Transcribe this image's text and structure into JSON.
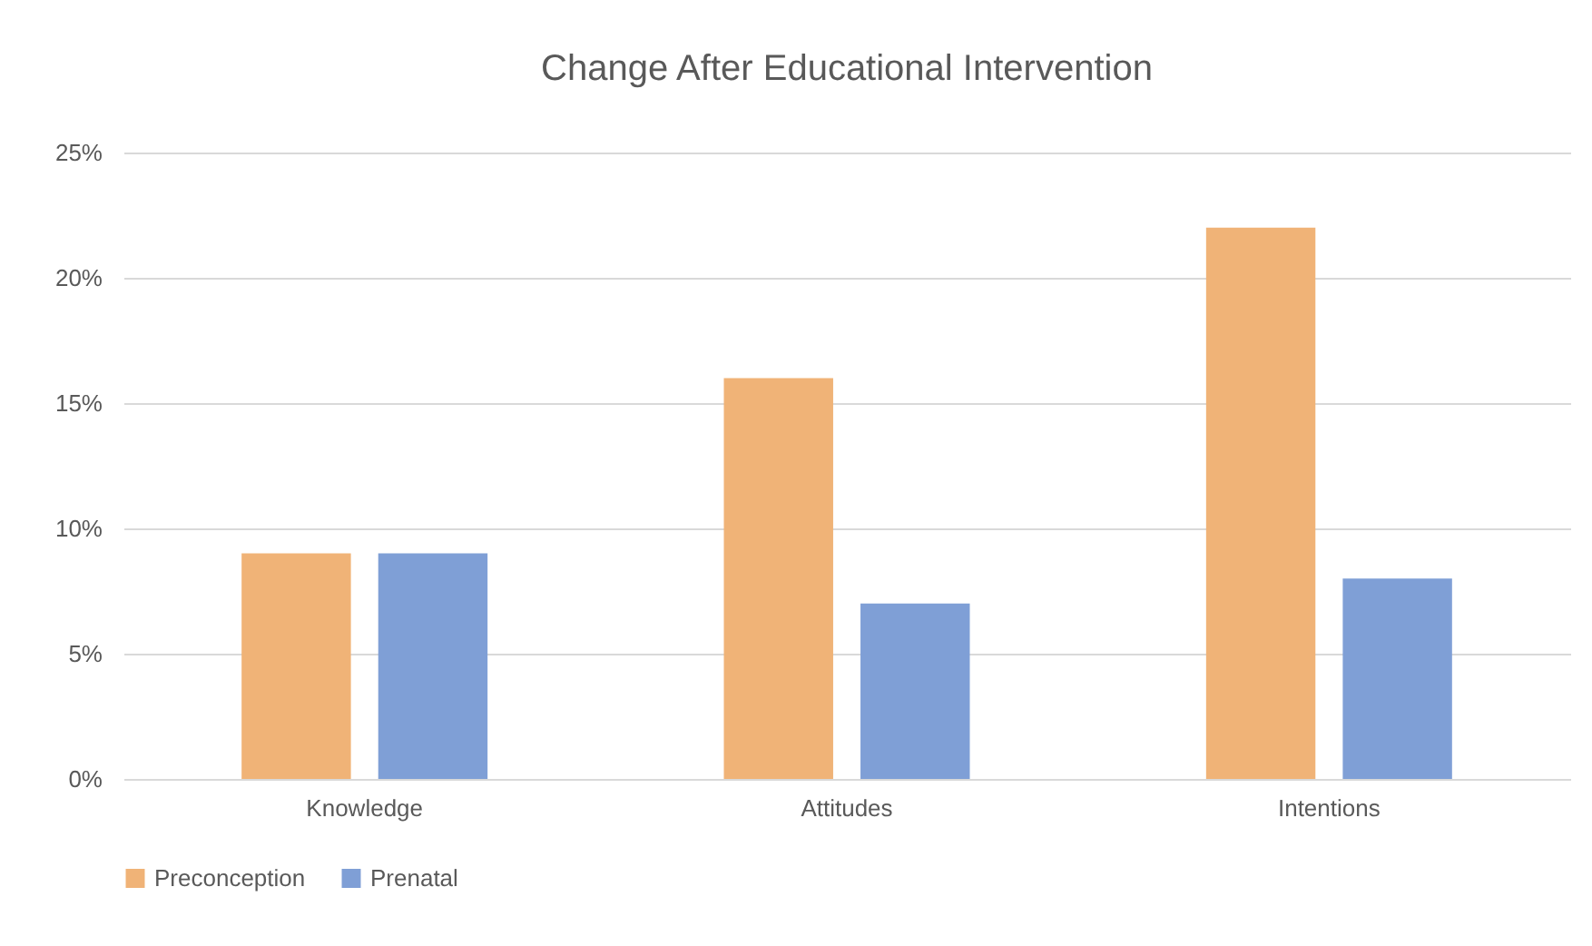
{
  "chart_data": {
    "type": "bar",
    "title": "Change After Educational Intervention",
    "categories": [
      "Knowledge",
      "Attitudes",
      "Intentions"
    ],
    "series": [
      {
        "name": "Preconception",
        "color": "#f0b377",
        "values": [
          9,
          16,
          22
        ]
      },
      {
        "name": "Prenatal",
        "color": "#7f9fd6",
        "values": [
          9,
          7,
          8
        ]
      }
    ],
    "ylim": [
      0,
      25
    ],
    "yticks": [
      {
        "value": 0,
        "label": "0%"
      },
      {
        "value": 5,
        "label": "5%"
      },
      {
        "value": 10,
        "label": "10%"
      },
      {
        "value": 15,
        "label": "15%"
      },
      {
        "value": 20,
        "label": "20%"
      },
      {
        "value": 25,
        "label": "25%"
      }
    ],
    "grid": "y",
    "legend": "bottom"
  }
}
